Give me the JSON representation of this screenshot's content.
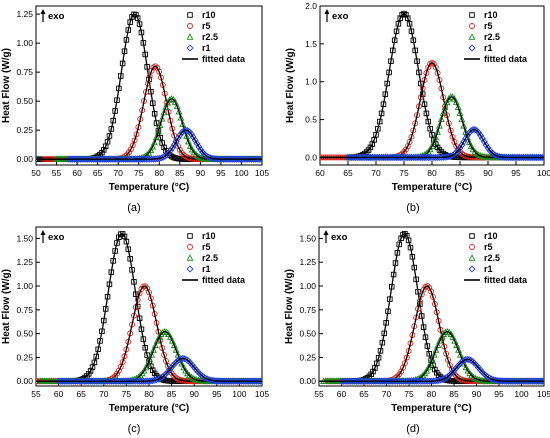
{
  "chart_data": [
    {
      "panel_label": "(a)",
      "type": "line",
      "annotation": "exo",
      "xlabel": "Temperature (°C)",
      "ylabel": "Heat Flow (W/g)",
      "xlim": [
        50,
        105
      ],
      "ylim": [
        -0.05,
        1.32
      ],
      "xticks": [
        50,
        55,
        60,
        65,
        70,
        75,
        80,
        85,
        90,
        95,
        100,
        105
      ],
      "yticks": [
        0.0,
        0.25,
        0.5,
        0.75,
        1.0,
        1.25
      ],
      "legend_position": "top-right",
      "fit_label": "fitted data",
      "series": [
        {
          "name": "r10",
          "marker": "square",
          "color": "#000000",
          "peak_x": 74.0,
          "peak_y": 1.25,
          "width": 3.2,
          "x_start": 50
        },
        {
          "name": "r5",
          "marker": "circle",
          "color": "#e2231a",
          "peak_x": 79.0,
          "peak_y": 0.8,
          "width": 2.8,
          "x_start": 52
        },
        {
          "name": "r2.5",
          "marker": "triangle",
          "color": "#1a8c1a",
          "peak_x": 83.0,
          "peak_y": 0.52,
          "width": 2.6,
          "x_start": 55
        },
        {
          "name": "r1",
          "marker": "diamond",
          "color": "#1f3fe0",
          "peak_x": 86.5,
          "peak_y": 0.25,
          "width": 2.4,
          "x_start": 58
        }
      ]
    },
    {
      "panel_label": "(b)",
      "type": "line",
      "annotation": "exo",
      "xlabel": "Temperature (°C)",
      "ylabel": "Heat Flow (W/g)",
      "xlim": [
        60,
        100
      ],
      "ylim": [
        -0.1,
        2.0
      ],
      "xticks": [
        60,
        65,
        70,
        75,
        80,
        85,
        90,
        95,
        100
      ],
      "yticks": [
        0.0,
        0.5,
        1.0,
        1.5,
        2.0
      ],
      "legend_position": "top-right",
      "fit_label": "fitted data",
      "series": [
        {
          "name": "r10",
          "marker": "square",
          "color": "#000000",
          "peak_x": 75.0,
          "peak_y": 1.9,
          "width": 2.6,
          "x_start": 65
        },
        {
          "name": "r5",
          "marker": "circle",
          "color": "#e2231a",
          "peak_x": 80.0,
          "peak_y": 1.25,
          "width": 2.1,
          "x_start": 60
        },
        {
          "name": "r2.5",
          "marker": "triangle",
          "color": "#1a8c1a",
          "peak_x": 83.5,
          "peak_y": 0.8,
          "width": 1.9,
          "x_start": 65
        },
        {
          "name": "r1",
          "marker": "diamond",
          "color": "#1f3fe0",
          "peak_x": 87.5,
          "peak_y": 0.37,
          "width": 1.7,
          "x_start": 65
        }
      ]
    },
    {
      "panel_label": "(c)",
      "type": "line",
      "annotation": "exo",
      "xlabel": "Temperature (°C)",
      "ylabel": "Heat Flow (W/g)",
      "xlim": [
        55,
        105
      ],
      "ylim": [
        -0.05,
        1.62
      ],
      "xticks": [
        55,
        60,
        65,
        70,
        75,
        80,
        85,
        90,
        95,
        100,
        105
      ],
      "yticks": [
        0.0,
        0.25,
        0.5,
        0.75,
        1.0,
        1.25,
        1.5
      ],
      "legend_position": "top-right",
      "fit_label": "fitted data",
      "series": [
        {
          "name": "r10",
          "marker": "square",
          "color": "#000000",
          "peak_x": 74.0,
          "peak_y": 1.55,
          "width": 3.0,
          "x_start": 55
        },
        {
          "name": "r5",
          "marker": "circle",
          "color": "#e2231a",
          "peak_x": 79.0,
          "peak_y": 1.0,
          "width": 2.7,
          "x_start": 55
        },
        {
          "name": "r2.5",
          "marker": "triangle",
          "color": "#1a8c1a",
          "peak_x": 83.5,
          "peak_y": 0.52,
          "width": 2.6,
          "x_start": 56
        },
        {
          "name": "r1",
          "marker": "diamond",
          "color": "#1f3fe0",
          "peak_x": 87.5,
          "peak_y": 0.24,
          "width": 2.5,
          "x_start": 60
        }
      ]
    },
    {
      "panel_label": "(d)",
      "type": "line",
      "annotation": "exo",
      "xlabel": "Temperature (°C)",
      "ylabel": "Heat Flow (W/g)",
      "xlim": [
        55,
        105
      ],
      "ylim": [
        -0.05,
        1.62
      ],
      "xticks": [
        55,
        60,
        65,
        70,
        75,
        80,
        85,
        90,
        95,
        100,
        105
      ],
      "yticks": [
        0.0,
        0.25,
        0.5,
        0.75,
        1.0,
        1.25,
        1.5
      ],
      "legend_position": "top-right",
      "fit_label": "fitted data",
      "series": [
        {
          "name": "r10",
          "marker": "square",
          "color": "#000000",
          "peak_x": 74.0,
          "peak_y": 1.55,
          "width": 3.0,
          "x_start": 57
        },
        {
          "name": "r5",
          "marker": "circle",
          "color": "#e2231a",
          "peak_x": 79.0,
          "peak_y": 1.0,
          "width": 2.7,
          "x_start": 57
        },
        {
          "name": "r2.5",
          "marker": "triangle",
          "color": "#1a8c1a",
          "peak_x": 83.5,
          "peak_y": 0.52,
          "width": 2.6,
          "x_start": 56
        },
        {
          "name": "r1",
          "marker": "diamond",
          "color": "#1f3fe0",
          "peak_x": 88.0,
          "peak_y": 0.23,
          "width": 2.5,
          "x_start": 60
        }
      ]
    }
  ]
}
